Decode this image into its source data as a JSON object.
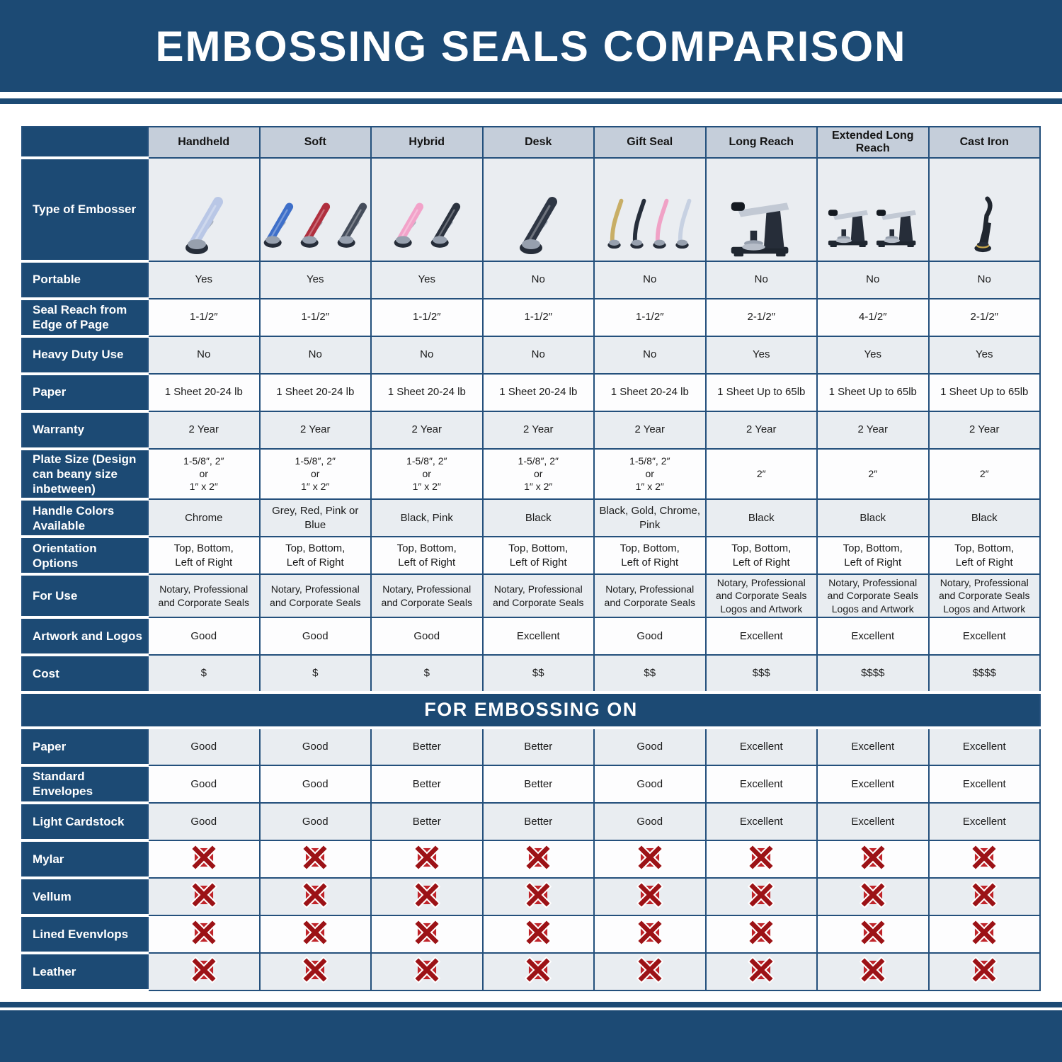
{
  "title": "EMBOSSING SEALS COMPARISON",
  "embossing_section_title": "FOR EMBOSSING ON",
  "colors": {
    "navy_band": "#1c4a74",
    "table_border": "#24507c",
    "column_header_bg": "#c5ceda",
    "row_shade": "#e9edf1",
    "row_plain": "#fdfdfe",
    "x_red_dark": "#9c1216",
    "x_red": "#c0242a"
  },
  "columns": [
    {
      "label": "Handheld"
    },
    {
      "label": "Soft"
    },
    {
      "label": "Hybrid"
    },
    {
      "label": "Desk"
    },
    {
      "label": "Gift Seal"
    },
    {
      "label": "Long Reach"
    },
    {
      "label": "Extended Long Reach"
    },
    {
      "label": "Cast Iron"
    }
  ],
  "type_row": {
    "label": "Type of Embosser",
    "images": [
      {
        "name": "handheld-embosser-image",
        "style": "plier",
        "colors": [
          "#b9c7e6"
        ]
      },
      {
        "name": "soft-embosser-image",
        "style": "plier",
        "colors": [
          "#3e6fc9",
          "#b02f3e",
          "#454d5b"
        ]
      },
      {
        "name": "hybrid-embosser-image",
        "style": "plier",
        "colors": [
          "#f2a2c9",
          "#2c333f"
        ]
      },
      {
        "name": "desk-embosser-image",
        "style": "plier",
        "colors": [
          "#2e3644"
        ]
      },
      {
        "name": "gift-seal-embosser-image",
        "style": "slim",
        "colors": [
          "#c8ae66",
          "#262e3b",
          "#f0a2c6",
          "#c7d1e2"
        ]
      },
      {
        "name": "long-reach-embosser-image",
        "style": "desk",
        "colors": [
          "#262d39"
        ]
      },
      {
        "name": "extended-long-reach-embosser-image",
        "style": "desk",
        "colors": [
          "#262d39",
          "#262d39"
        ]
      },
      {
        "name": "cast-iron-embosser-image",
        "style": "upright",
        "colors": [
          "#20262f"
        ]
      }
    ]
  },
  "rows": [
    {
      "label": "Portable",
      "values": [
        "Yes",
        "Yes",
        "Yes",
        "No",
        "No",
        "No",
        "No",
        "No"
      ]
    },
    {
      "label": "Seal Reach from Edge of Page",
      "values": [
        "1-1/2″",
        "1-1/2″",
        "1-1/2″",
        "1-1/2″",
        "1-1/2″",
        "2-1/2″",
        "4-1/2″",
        "2-1/2″"
      ]
    },
    {
      "label": "Heavy Duty Use",
      "values": [
        "No",
        "No",
        "No",
        "No",
        "No",
        "Yes",
        "Yes",
        "Yes"
      ]
    },
    {
      "label": "Paper",
      "values": [
        "1 Sheet 20-24 lb",
        "1 Sheet 20-24 lb",
        "1 Sheet 20-24 lb",
        "1 Sheet 20-24 lb",
        "1 Sheet 20-24 lb",
        "1 Sheet Up to 65lb",
        "1 Sheet Up to 65lb",
        "1 Sheet Up to 65lb"
      ]
    },
    {
      "label": "Warranty",
      "values": [
        "2 Year",
        "2 Year",
        "2 Year",
        "2 Year",
        "2 Year",
        "2 Year",
        "2 Year",
        "2 Year"
      ]
    },
    {
      "label": "Plate Size (Design can beany size inbetween)",
      "values": [
        "1-5/8″, 2″\nor\n1″ x 2″",
        "1-5/8″, 2″\nor\n1″ x 2″",
        "1-5/8″, 2″\nor\n1″ x 2″",
        "1-5/8″, 2″\nor\n1″ x 2″",
        "1-5/8″, 2″\nor\n1″ x 2″",
        "2″",
        "2″",
        "2″"
      ]
    },
    {
      "label": "Handle Colors Available",
      "values": [
        "Chrome",
        "Grey, Red, Pink or Blue",
        "Black, Pink",
        "Black",
        "Black, Gold, Chrome, Pink",
        "Black",
        "Black",
        "Black"
      ]
    },
    {
      "label": "Orientation Options",
      "values": [
        "Top, Bottom,\nLeft of Right",
        "Top, Bottom,\nLeft of Right",
        "Top, Bottom,\nLeft of Right",
        "Top, Bottom,\nLeft of Right",
        "Top, Bottom,\nLeft of Right",
        "Top, Bottom,\nLeft of Right",
        "Top, Bottom,\nLeft of Right",
        "Top, Bottom,\nLeft of Right"
      ]
    },
    {
      "label": "For Use",
      "values": [
        "Notary, Professional\nand Corporate Seals",
        "Notary, Professional\nand Corporate Seals",
        "Notary, Professional\nand Corporate Seals",
        "Notary, Professional\nand Corporate Seals",
        "Notary, Professional\nand Corporate Seals",
        "Notary, Professional\nand Corporate Seals\nLogos and Artwork",
        "Notary, Professional\nand Corporate Seals\nLogos and Artwork",
        "Notary, Professional\nand Corporate Seals\nLogos and Artwork"
      ]
    },
    {
      "label": "Artwork and Logos",
      "values": [
        "Good",
        "Good",
        "Good",
        "Excellent",
        "Good",
        "Excellent",
        "Excellent",
        "Excellent"
      ]
    },
    {
      "label": "Cost",
      "values": [
        "$",
        "$",
        "$",
        "$$",
        "$$",
        "$$$",
        "$$$$",
        "$$$$"
      ]
    }
  ],
  "embossing_rows": [
    {
      "label": "Paper",
      "values": [
        "Good",
        "Good",
        "Better",
        "Better",
        "Good",
        "Excellent",
        "Excellent",
        "Excellent"
      ]
    },
    {
      "label": "Standard Envelopes",
      "values": [
        "Good",
        "Good",
        "Better",
        "Better",
        "Good",
        "Excellent",
        "Excellent",
        "Excellent"
      ]
    },
    {
      "label": "Light Cardstock",
      "values": [
        "Good",
        "Good",
        "Better",
        "Better",
        "Good",
        "Excellent",
        "Excellent",
        "Excellent"
      ]
    },
    {
      "label": "Mylar",
      "values": [
        "x",
        "x",
        "x",
        "x",
        "x",
        "x",
        "x",
        "x"
      ]
    },
    {
      "label": "Vellum",
      "values": [
        "x",
        "x",
        "x",
        "x",
        "x",
        "x",
        "x",
        "x"
      ]
    },
    {
      "label": "Lined Evenvlops",
      "values": [
        "x",
        "x",
        "x",
        "x",
        "x",
        "x",
        "x",
        "x"
      ]
    },
    {
      "label": "Leather",
      "values": [
        "x",
        "x",
        "x",
        "x",
        "x",
        "x",
        "x",
        "x"
      ]
    }
  ],
  "not_suitable_marker": "x"
}
